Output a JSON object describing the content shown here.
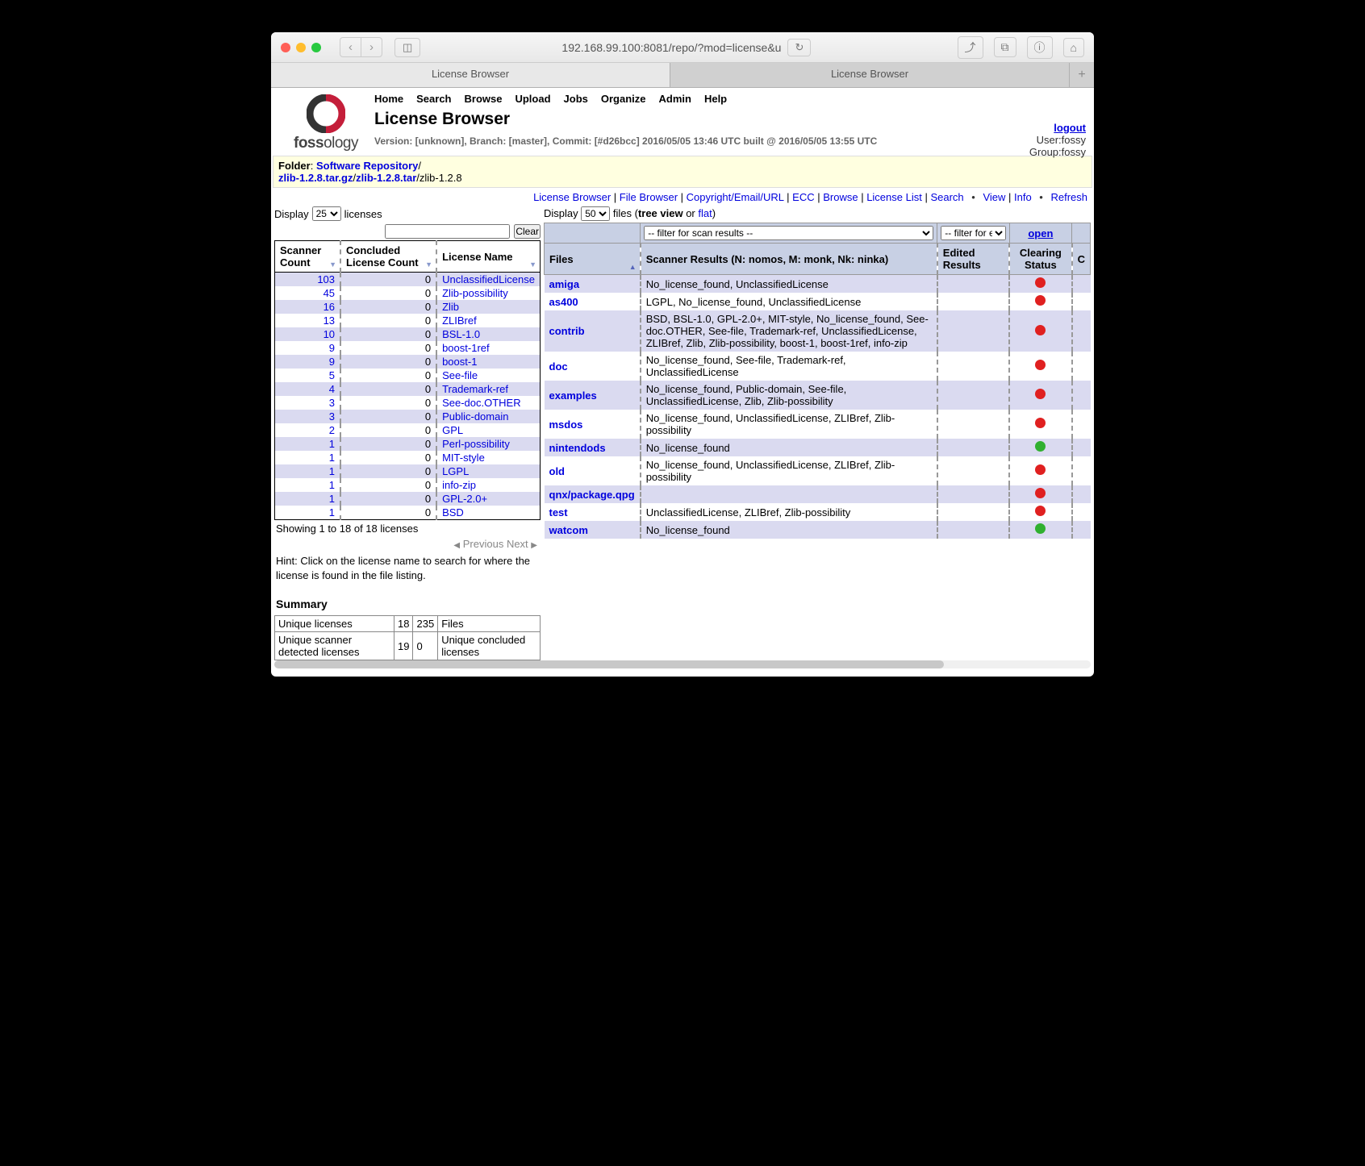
{
  "browser": {
    "url": "192.168.99.100:8081/repo/?mod=license&u",
    "tab1": "License Browser",
    "tab2": "License Browser"
  },
  "logo_text": "fossology",
  "menu": [
    "Home",
    "Search",
    "Browse",
    "Upload",
    "Jobs",
    "Organize",
    "Admin",
    "Help"
  ],
  "page_title": "License Browser",
  "version_line": "Version: [unknown], Branch: [master], Commit: [#d26bcc] 2016/05/05 13:46 UTC built @ 2016/05/05 13:55 UTC",
  "user": {
    "logout": "logout",
    "user_line": "User:fossy",
    "group_line": "Group:fossy"
  },
  "folder": {
    "label": "Folder",
    "repo": "Software Repository",
    "p1": "zlib-1.2.8.tar.gz",
    "p2": "zlib-1.2.8.tar",
    "p3": "zlib-1.2.8"
  },
  "subnav": [
    "License Browser",
    "File Browser",
    "Copyright/Email/URL",
    "ECC",
    "Browse",
    "License List",
    "Search",
    "View",
    "Info",
    "Refresh"
  ],
  "left": {
    "display_label": "Display",
    "display_count": "25",
    "licenses_label": "licenses",
    "clear": "Clear",
    "cols": {
      "scanner": "Scanner Count",
      "concluded": "Concluded License Count",
      "name": "License Name"
    },
    "rows": [
      {
        "s": "103",
        "c": "0",
        "n": "UnclassifiedLicense"
      },
      {
        "s": "45",
        "c": "0",
        "n": "Zlib-possibility"
      },
      {
        "s": "16",
        "c": "0",
        "n": "Zlib"
      },
      {
        "s": "13",
        "c": "0",
        "n": "ZLIBref"
      },
      {
        "s": "10",
        "c": "0",
        "n": "BSL-1.0"
      },
      {
        "s": "9",
        "c": "0",
        "n": "boost-1ref"
      },
      {
        "s": "9",
        "c": "0",
        "n": "boost-1"
      },
      {
        "s": "5",
        "c": "0",
        "n": "See-file"
      },
      {
        "s": "4",
        "c": "0",
        "n": "Trademark-ref"
      },
      {
        "s": "3",
        "c": "0",
        "n": "See-doc.OTHER"
      },
      {
        "s": "3",
        "c": "0",
        "n": "Public-domain"
      },
      {
        "s": "2",
        "c": "0",
        "n": "GPL"
      },
      {
        "s": "1",
        "c": "0",
        "n": "Perl-possibility"
      },
      {
        "s": "1",
        "c": "0",
        "n": "MIT-style"
      },
      {
        "s": "1",
        "c": "0",
        "n": "LGPL"
      },
      {
        "s": "1",
        "c": "0",
        "n": "info-zip"
      },
      {
        "s": "1",
        "c": "0",
        "n": "GPL-2.0+"
      },
      {
        "s": "1",
        "c": "0",
        "n": "BSD"
      }
    ],
    "showing": "Showing 1 to 18 of 18 licenses",
    "prev": "Previous",
    "next": "Next",
    "hint": "Hint: Click on the license name to search for where the license is found in the file listing.",
    "summary_h": "Summary",
    "summary": {
      "r1c1": "Unique licenses",
      "r1c2": "18",
      "r1c3": "235",
      "r1c4": "Files",
      "r2c1": "Unique scanner detected licenses",
      "r2c2": "19",
      "r2c3": "0",
      "r2c4": "Unique concluded licenses"
    }
  },
  "right": {
    "display_label": "Display",
    "display_count": "50",
    "files_label": "files (",
    "tree": "tree view",
    "or": " or ",
    "flat": "flat",
    "close": ")",
    "filter_scan": "-- filter for scan results --",
    "filter_edit": "-- filter for edited results --",
    "open": "open",
    "cols": {
      "files": "Files",
      "scanner": "Scanner Results (N: nomos, M: monk, Nk: ninka)",
      "edited": "Edited Results",
      "clearing": "Clearing Status",
      "c": "C"
    },
    "rows": [
      {
        "file": "amiga",
        "scan": "No_license_found, UnclassifiedLicense",
        "status": "red"
      },
      {
        "file": "as400",
        "scan": "LGPL, No_license_found, UnclassifiedLicense",
        "status": "red"
      },
      {
        "file": "contrib",
        "scan": "BSD, BSL-1.0, GPL-2.0+, MIT-style, No_license_found, See-doc.OTHER, See-file, Trademark-ref, UnclassifiedLicense, ZLIBref, Zlib, Zlib-possibility, boost-1, boost-1ref, info-zip",
        "status": "red"
      },
      {
        "file": "doc",
        "scan": "No_license_found, See-file, Trademark-ref, UnclassifiedLicense",
        "status": "red"
      },
      {
        "file": "examples",
        "scan": "No_license_found, Public-domain, See-file, UnclassifiedLicense, Zlib, Zlib-possibility",
        "status": "red"
      },
      {
        "file": "msdos",
        "scan": "No_license_found, UnclassifiedLicense, ZLIBref, Zlib-possibility",
        "status": "red"
      },
      {
        "file": "nintendods",
        "scan": "No_license_found",
        "status": "green"
      },
      {
        "file": "old",
        "scan": "No_license_found, UnclassifiedLicense, ZLIBref, Zlib-possibility",
        "status": "red"
      },
      {
        "file": "qnx/package.qpg",
        "scan": "",
        "status": "red"
      },
      {
        "file": "test",
        "scan": "UnclassifiedLicense, ZLIBref, Zlib-possibility",
        "status": "red"
      },
      {
        "file": "watcom",
        "scan": "No_license_found",
        "status": "green"
      }
    ]
  }
}
